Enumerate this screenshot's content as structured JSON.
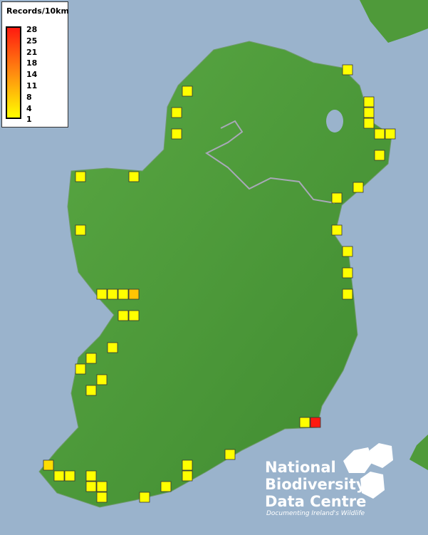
{
  "legend": {
    "title": "Records/10km",
    "ticks": [
      "28",
      "25",
      "21",
      "18",
      "14",
      "11",
      "8",
      "4",
      "1"
    ],
    "colors": {
      "min": "#ffff00",
      "mid": "#ff9a10",
      "max": "#ff1a10"
    }
  },
  "logo": {
    "name_lines": [
      "National",
      "Biodiversity",
      "Data Centre"
    ],
    "tagline": "Documenting Ireland's Wildlife"
  },
  "colors": {
    "sea": "#9ab3cc",
    "land": "#4f9a3a"
  },
  "records": [
    {
      "col": 32,
      "row": 6,
      "value": 1
    },
    {
      "col": 17,
      "row": 8,
      "value": 1
    },
    {
      "col": 16,
      "row": 10,
      "value": 1
    },
    {
      "col": 16,
      "row": 12,
      "value": 1
    },
    {
      "col": 34,
      "row": 9,
      "value": 1
    },
    {
      "col": 34,
      "row": 10,
      "value": 1
    },
    {
      "col": 34,
      "row": 11,
      "value": 1
    },
    {
      "col": 35,
      "row": 12,
      "value": 1
    },
    {
      "col": 36,
      "row": 12,
      "value": 1
    },
    {
      "col": 35,
      "row": 14,
      "value": 1
    },
    {
      "col": 7,
      "row": 16,
      "value": 1
    },
    {
      "col": 12,
      "row": 16,
      "value": 1
    },
    {
      "col": 33,
      "row": 17,
      "value": 1
    },
    {
      "col": 31,
      "row": 18,
      "value": 1
    },
    {
      "col": 7,
      "row": 21,
      "value": 1
    },
    {
      "col": 31,
      "row": 21,
      "value": 1
    },
    {
      "col": 32,
      "row": 23,
      "value": 1
    },
    {
      "col": 32,
      "row": 25,
      "value": 1
    },
    {
      "col": 32,
      "row": 27,
      "value": 1
    },
    {
      "col": 9,
      "row": 27,
      "value": 1
    },
    {
      "col": 10,
      "row": 27,
      "value": 1
    },
    {
      "col": 11,
      "row": 27,
      "value": 1
    },
    {
      "col": 12,
      "row": 27,
      "value": 8
    },
    {
      "col": 11,
      "row": 29,
      "value": 1
    },
    {
      "col": 12,
      "row": 29,
      "value": 1
    },
    {
      "col": 10,
      "row": 32,
      "value": 1
    },
    {
      "col": 8,
      "row": 33,
      "value": 1
    },
    {
      "col": 7,
      "row": 34,
      "value": 1
    },
    {
      "col": 9,
      "row": 35,
      "value": 1
    },
    {
      "col": 8,
      "row": 36,
      "value": 1
    },
    {
      "col": 28,
      "row": 39,
      "value": 1
    },
    {
      "col": 29,
      "row": 39,
      "value": 28
    },
    {
      "col": 21,
      "row": 42,
      "value": 1
    },
    {
      "col": 17,
      "row": 43,
      "value": 1
    },
    {
      "col": 17,
      "row": 44,
      "value": 1
    },
    {
      "col": 4,
      "row": 43,
      "value": 5
    },
    {
      "col": 5,
      "row": 44,
      "value": 1
    },
    {
      "col": 6,
      "row": 44,
      "value": 1
    },
    {
      "col": 8,
      "row": 44,
      "value": 1
    },
    {
      "col": 8,
      "row": 45,
      "value": 1
    },
    {
      "col": 9,
      "row": 45,
      "value": 1
    },
    {
      "col": 9,
      "row": 46,
      "value": 1
    },
    {
      "col": 13,
      "row": 46,
      "value": 1
    },
    {
      "col": 15,
      "row": 45,
      "value": 1
    }
  ]
}
